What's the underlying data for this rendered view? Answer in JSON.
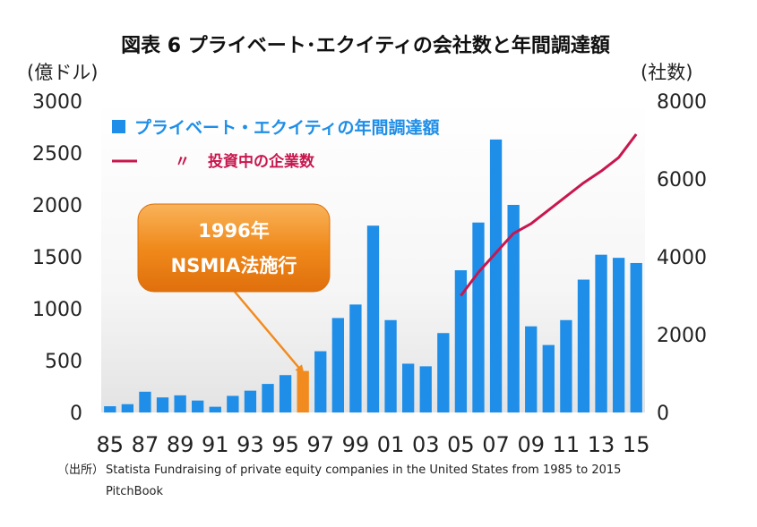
{
  "chart_data": {
    "type": "bar",
    "title": "図表 6 プライベート･エクイティの会社数と年間調達額",
    "y_left_unit": "(億ドル)",
    "y_right_unit": "(社数)",
    "ylim_left": [
      0,
      3000
    ],
    "ylim_right": [
      0,
      8000
    ],
    "y_left_ticks": [
      "3000",
      "2500",
      "2000",
      "1500",
      "1000",
      "500",
      "0"
    ],
    "y_right_ticks": [
      "8000",
      "6000",
      "4000",
      "2000",
      "0"
    ],
    "x_tick_labels": [
      "85",
      "87",
      "89",
      "91",
      "93",
      "95",
      "97",
      "99",
      "01",
      "03",
      "05",
      "07",
      "09",
      "11",
      "13",
      "15"
    ],
    "categories": [
      "1985",
      "1986",
      "1987",
      "1988",
      "1989",
      "1990",
      "1991",
      "1992",
      "1993",
      "1994",
      "1995",
      "1996",
      "1997",
      "1998",
      "1999",
      "2000",
      "2001",
      "2002",
      "2003",
      "2004",
      "2005",
      "2006",
      "2007",
      "2008",
      "2009",
      "2010",
      "2011",
      "2012",
      "2013",
      "2014",
      "2015"
    ],
    "highlight_category": "1996",
    "grid": false,
    "legend_position": "top-left",
    "series": [
      {
        "name": "プライベート・エクイティの年間調達額",
        "type": "bar",
        "axis": "left",
        "color": "#1e8ee8",
        "highlight_color": "#f28b1f",
        "values": [
          60,
          80,
          200,
          145,
          165,
          115,
          55,
          160,
          210,
          275,
          360,
          400,
          590,
          910,
          1040,
          1800,
          890,
          470,
          445,
          765,
          1370,
          1830,
          2630,
          2000,
          830,
          650,
          890,
          1280,
          1520,
          1490,
          1440
        ]
      },
      {
        "name": "〃　投資中の企業数",
        "type": "line",
        "axis": "right",
        "color": "#c8174e",
        "x": [
          "2005",
          "2006",
          "2007",
          "2008",
          "2009",
          "2010",
          "2011",
          "2012",
          "2013",
          "2014",
          "2015"
        ],
        "values": [
          3000,
          3600,
          4100,
          4600,
          4850,
          5200,
          5550,
          5900,
          6200,
          6550,
          7150
        ]
      }
    ],
    "legend": {
      "bar_label": "プライベート・エクイティの年間調達額",
      "line_mark": "〃",
      "line_label": "投資中の企業数"
    },
    "annotation": {
      "line1": "1996年",
      "line2": "NSMIA法施行",
      "target": "1996"
    }
  },
  "source": {
    "label": "（出所）",
    "line1": "Statista  Fundraising of private equity companies in the United States from 1985 to 2015",
    "line2": "PitchBook"
  }
}
